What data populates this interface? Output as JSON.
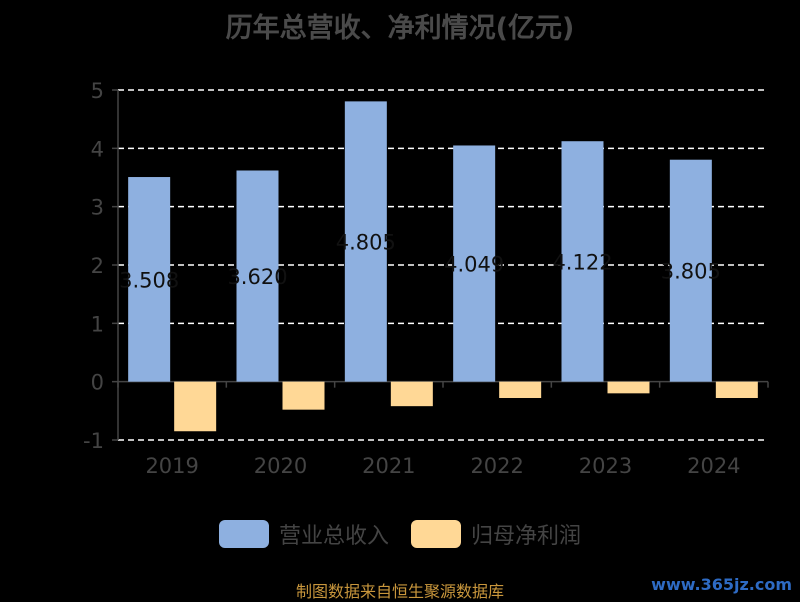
{
  "chart_data": {
    "type": "bar",
    "title": "历年总营收、净利情况(亿元)",
    "categories": [
      "2019",
      "2020",
      "2021",
      "2022",
      "2023",
      "2024"
    ],
    "series": [
      {
        "name": "营业总收入",
        "color": "#8eb0e0",
        "values": [
          3.508,
          3.62,
          4.805,
          4.049,
          4.122,
          3.805
        ],
        "labels": [
          "3.508",
          "3.620",
          "4.805",
          "4.049",
          "4.122",
          "3.805"
        ]
      },
      {
        "name": "归母净利润",
        "color": "#ffd896",
        "values": [
          -0.85,
          -0.48,
          -0.42,
          -0.28,
          -0.2,
          -0.28
        ]
      }
    ],
    "ylim": [
      -1,
      5
    ],
    "yticks": [
      "-1",
      "0",
      "1",
      "2",
      "3",
      "4",
      "5"
    ],
    "grid": true,
    "legend_position": "bottom"
  },
  "footer": {
    "source": "制图数据来自恒生聚源数据库",
    "watermark": "www.365jz.com"
  }
}
